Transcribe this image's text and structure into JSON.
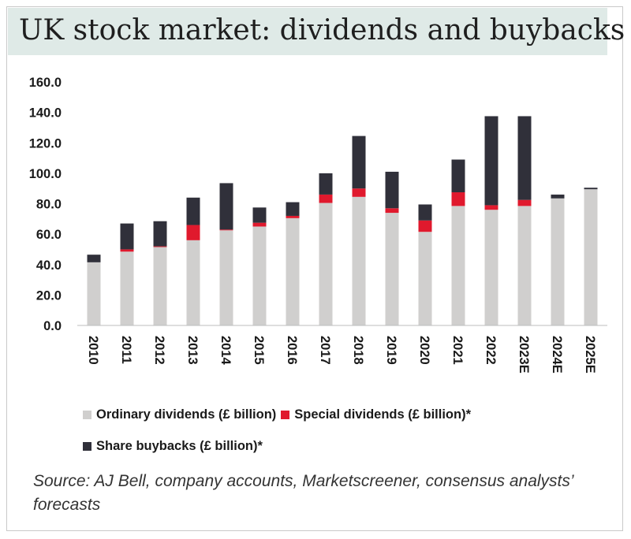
{
  "title": "UK stock market: dividends and buybacks",
  "source": "Source: AJ Bell, company accounts, Marketscreener, consensus analysts’ forecasts",
  "colors": {
    "ordinary": "#d0cfce",
    "special": "#e0192d",
    "buybacks": "#30303a",
    "title_bg": "#dfeae7"
  },
  "chart_data": {
    "type": "bar",
    "stacked": true,
    "title": "UK stock market: dividends and buybacks",
    "xlabel": "",
    "ylabel": "",
    "ylim": [
      0,
      160
    ],
    "y_ticks": [
      "0.0",
      "20.0",
      "40.0",
      "60.0",
      "80.0",
      "100.0",
      "120.0",
      "140.0",
      "160.0"
    ],
    "grid": false,
    "legend_position": "bottom",
    "categories": [
      "2010",
      "2011",
      "2012",
      "2013",
      "2014",
      "2015",
      "2016",
      "2017",
      "2018",
      "2019",
      "2020",
      "2021",
      "2022",
      "2023E",
      "2024E",
      "2025E"
    ],
    "series": [
      {
        "name": "Ordinary dividends (£ billion)",
        "color": "#d0cfce",
        "values": [
          41.5,
          48.5,
          51.5,
          56,
          62.5,
          65,
          70.5,
          80.5,
          84.5,
          74,
          61.5,
          78.5,
          76,
          78.5,
          83.5,
          89.5
        ]
      },
      {
        "name": "Special dividends (£ billion)*",
        "color": "#e0192d",
        "values": [
          0,
          1.5,
          0.5,
          10,
          0.5,
          2.5,
          1.5,
          5.5,
          5.5,
          3,
          7.5,
          9,
          3,
          4,
          0,
          0
        ]
      },
      {
        "name": "Share buybacks (£ billion)*",
        "color": "#30303a",
        "values": [
          5,
          17,
          16.5,
          18,
          30.5,
          10,
          9,
          14,
          34.5,
          24,
          10.5,
          21.5,
          58.5,
          55,
          2.5,
          1
        ]
      }
    ]
  }
}
